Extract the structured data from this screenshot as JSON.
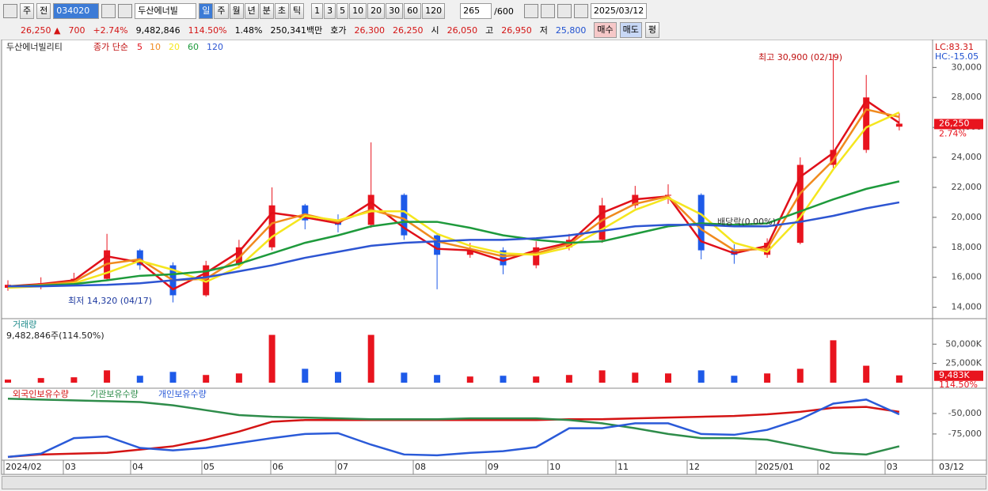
{
  "toolbar": {
    "market": "주",
    "prev": "전",
    "code": "034020",
    "name": "두산에너빌",
    "periods": [
      "일",
      "주",
      "월",
      "년",
      "분",
      "초",
      "틱"
    ],
    "intervals": [
      "1",
      "3",
      "5",
      "10",
      "20",
      "30",
      "60",
      "120"
    ],
    "count": "265",
    "max": "/600",
    "date": "2025/03/12"
  },
  "info_bar": {
    "price": "26,250 ▲",
    "change": "700",
    "rate": "+2.74%",
    "volume": "9,482,846",
    "volume_ratio": "114.50%",
    "turnover_rate": "1.48%",
    "amount": "250,341백만",
    "quote_label": "호가",
    "ask": "26,300",
    "bid": "26,250",
    "open_label": "시",
    "open": "26,050",
    "high_label": "고",
    "high": "26,950",
    "low_label": "저",
    "low": "25,800",
    "buy": "매수",
    "sell": "매도",
    "avg": "평"
  },
  "x_labels": [
    "2024/02",
    "03",
    "04",
    "05",
    "06",
    "07",
    "08",
    "09",
    "10",
    "11",
    "12",
    "2025/01",
    "02",
    "03"
  ],
  "cursor_date": "03/12",
  "chart_data": [
    {
      "type": "candlestick",
      "name": "두산에너빌리티",
      "ma_label": "종가 단순",
      "lc": "LC:83.31",
      "hc": "HC:-15.05",
      "up_color": "#e8141e",
      "down_color": "#1e5ae8",
      "open": [
        15300,
        15500,
        15600,
        15900,
        17800,
        16800,
        14800,
        16800,
        18000,
        20800,
        19800,
        19500,
        21500,
        18800,
        17500,
        17800,
        16800,
        18000,
        18500,
        20800,
        21500,
        21500,
        17800,
        17500,
        18300,
        23500,
        24500,
        26050
      ],
      "high": [
        15800,
        16000,
        16300,
        18900,
        17900,
        17000,
        17100,
        18500,
        22000,
        20900,
        20200,
        25000,
        21600,
        18900,
        18300,
        18000,
        18400,
        18900,
        21300,
        22100,
        22200,
        21600,
        18200,
        18600,
        24000,
        30900,
        29500,
        26950
      ],
      "low": [
        15100,
        15200,
        15400,
        15800,
        16500,
        14320,
        14700,
        16600,
        17800,
        19200,
        19000,
        19300,
        18500,
        15200,
        17300,
        16200,
        16600,
        17800,
        18300,
        20600,
        20900,
        17200,
        16900,
        17300,
        18200,
        23300,
        24300,
        25800
      ],
      "close": [
        15500,
        15600,
        15900,
        17800,
        16800,
        14800,
        16800,
        18000,
        20800,
        19800,
        19500,
        21500,
        18800,
        17500,
        17800,
        16800,
        18000,
        18500,
        20800,
        21500,
        21500,
        17800,
        17500,
        18300,
        23500,
        24500,
        28000,
        26250
      ],
      "series": [
        {
          "name": "5",
          "color": "#e0101a",
          "values": [
            15400,
            15550,
            15800,
            17400,
            17000,
            15200,
            16300,
            17700,
            20300,
            20000,
            19600,
            21000,
            19300,
            17900,
            17800,
            17100,
            17800,
            18300,
            20300,
            21200,
            21400,
            18400,
            17600,
            18100,
            22700,
            24300,
            27800,
            26300
          ]
        },
        {
          "name": "10",
          "color": "#f08a1e",
          "values": [
            15350,
            15500,
            15700,
            16900,
            17200,
            15800,
            15900,
            17300,
            19600,
            20200,
            19700,
            20500,
            19900,
            18400,
            17900,
            17400,
            17600,
            18200,
            19800,
            20900,
            21400,
            19200,
            17800,
            17900,
            21600,
            23800,
            27200,
            26700
          ]
        },
        {
          "name": "20",
          "color": "#f5e61e",
          "values": [
            15300,
            15400,
            15600,
            16300,
            17100,
            16500,
            15700,
            16700,
            18700,
            20100,
            19800,
            20400,
            20400,
            18900,
            18100,
            17600,
            17500,
            18000,
            19200,
            20500,
            21300,
            20200,
            18300,
            17700,
            20000,
            23200,
            26000,
            27000
          ]
        },
        {
          "name": "60",
          "color": "#1e9a3c",
          "values": [
            15400,
            15450,
            15550,
            15800,
            16100,
            16200,
            16400,
            16900,
            17600,
            18300,
            18800,
            19400,
            19700,
            19700,
            19300,
            18800,
            18500,
            18300,
            18400,
            18900,
            19400,
            19600,
            19500,
            19600,
            20400,
            21200,
            21900,
            22400
          ]
        },
        {
          "name": "120",
          "color": "#2d55d2",
          "values": [
            15400,
            15400,
            15450,
            15500,
            15600,
            15800,
            16000,
            16400,
            16800,
            17300,
            17700,
            18100,
            18300,
            18400,
            18500,
            18500,
            18600,
            18800,
            19100,
            19400,
            19500,
            19500,
            19400,
            19400,
            19700,
            20100,
            20600,
            21000
          ]
        }
      ],
      "ylim": [
        13400,
        31600
      ],
      "yticks": [
        {
          "value": 14000,
          "label": "14,000"
        },
        {
          "value": 16000,
          "label": "16,000"
        },
        {
          "value": 18000,
          "label": "18,000"
        },
        {
          "value": 20000,
          "label": "20,000"
        },
        {
          "value": 22000,
          "label": "22,000"
        },
        {
          "value": 24000,
          "label": "24,000"
        },
        {
          "value": 26000,
          "label": "26,000"
        },
        {
          "value": 28000,
          "label": "28,000"
        },
        {
          "value": 30000,
          "label": "30,000"
        }
      ],
      "annotations": [
        "최고 30,900 (02/19)",
        "최저 14,320 (04/17)",
        "배당락(0.00%)"
      ],
      "last_label": "26,250",
      "last_change": "2.74%"
    },
    {
      "type": "bar",
      "title": "거래량",
      "subtitle": "9,482,846주(114.50%)",
      "values": [
        4000,
        6000,
        7000,
        16000,
        9000,
        14000,
        10000,
        12000,
        62000,
        18000,
        14000,
        62000,
        13000,
        10000,
        8000,
        9000,
        8000,
        10000,
        16000,
        13000,
        12000,
        16000,
        9000,
        12000,
        18000,
        55000,
        22000,
        9483
      ],
      "ylim": [
        0,
        80000
      ],
      "yticks": [
        {
          "value": 25000,
          "label": "25,000K"
        },
        {
          "value": 50000,
          "label": "50,000K"
        }
      ],
      "last_label": "9,483K",
      "last_ratio": "114.50%"
    },
    {
      "type": "line",
      "series": [
        {
          "name": "외국인보유수량",
          "color": "#d41414",
          "values": [
            -103000,
            -100000,
            -99000,
            -98000,
            -94000,
            -90000,
            -82000,
            -72000,
            -60000,
            -58000,
            -58000,
            -58000,
            -58000,
            -58000,
            -58000,
            -58000,
            -58000,
            -57000,
            -57000,
            -56000,
            -55000,
            -54000,
            -53000,
            -51000,
            -48000,
            -43000,
            -42000,
            -48000
          ]
        },
        {
          "name": "기관보유수량",
          "color": "#2e8c4a",
          "values": [
            -32000,
            -33000,
            -34000,
            -35000,
            -36000,
            -40000,
            -46000,
            -52000,
            -54000,
            -55000,
            -56000,
            -57000,
            -57000,
            -57000,
            -56000,
            -56000,
            -56000,
            -58000,
            -62000,
            -68000,
            -75000,
            -80000,
            -80000,
            -82000,
            -90000,
            -98000,
            -100000,
            -90000
          ]
        },
        {
          "name": "개인보유수량",
          "color": "#2a5ad8",
          "values": [
            -103000,
            -99000,
            -80000,
            -78000,
            -92000,
            -95000,
            -92000,
            -86000,
            -80000,
            -75000,
            -74000,
            -88000,
            -100000,
            -101000,
            -98000,
            -96000,
            -91000,
            -68000,
            -68000,
            -62000,
            -62000,
            -75000,
            -76000,
            -70000,
            -57000,
            -38000,
            -33000,
            -51000
          ]
        }
      ],
      "ylim": [
        -105000,
        -24000
      ],
      "yticks": [
        {
          "value": -50000,
          "label": "-50,000"
        },
        {
          "value": -75000,
          "label": "-75,000"
        }
      ]
    }
  ]
}
